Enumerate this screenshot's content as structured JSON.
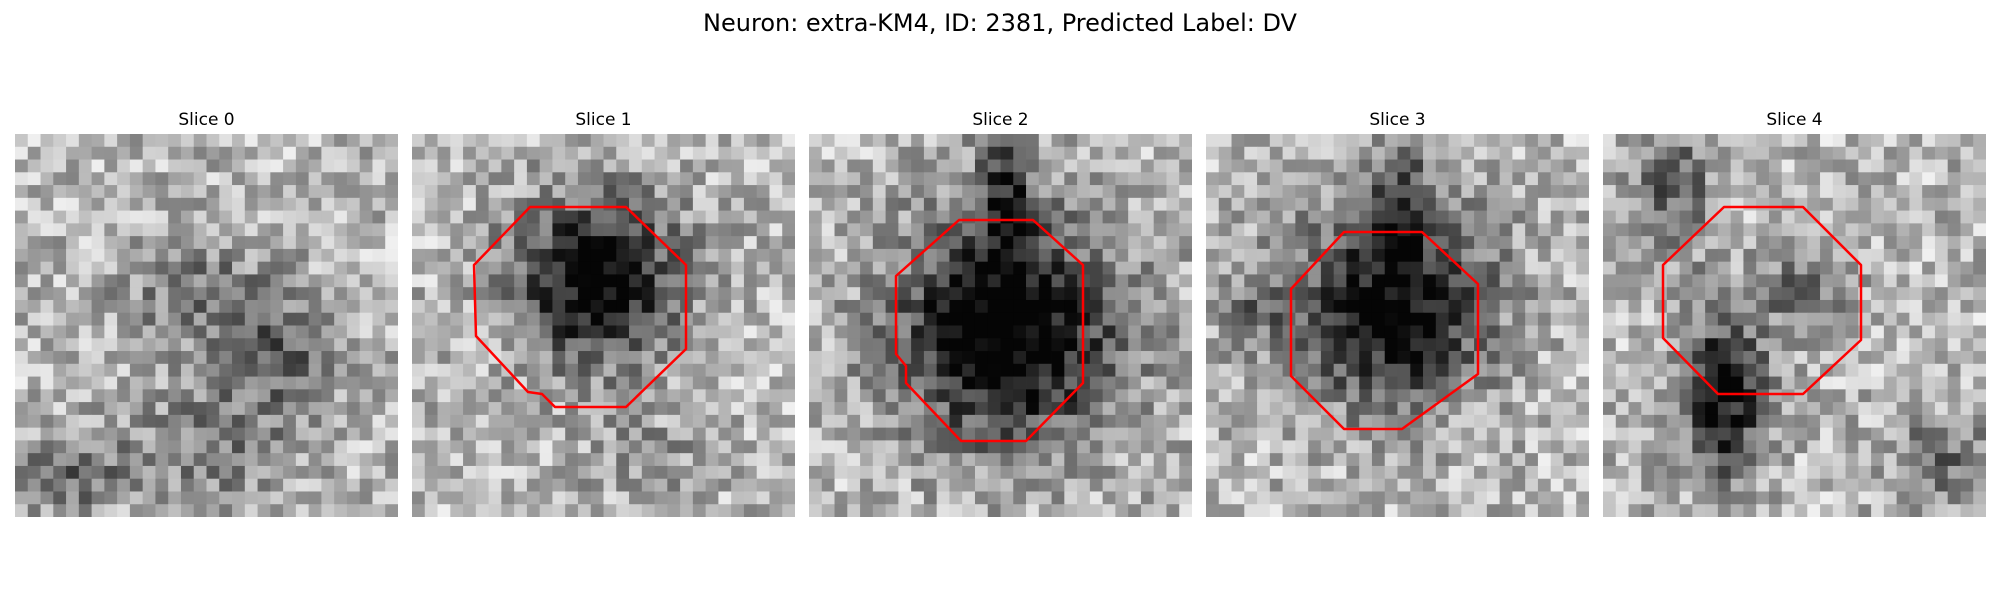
{
  "figure": {
    "title": "Neuron: extra-KM4, ID: 2381, Predicted Label: DV"
  },
  "colors": {
    "contour": "#ff0000",
    "background": "#ffffff"
  },
  "panels": [
    {
      "title": "Slice 0"
    },
    {
      "title": "Slice 1"
    },
    {
      "title": "Slice 2"
    },
    {
      "title": "Slice 3"
    },
    {
      "title": "Slice 4"
    }
  ]
}
